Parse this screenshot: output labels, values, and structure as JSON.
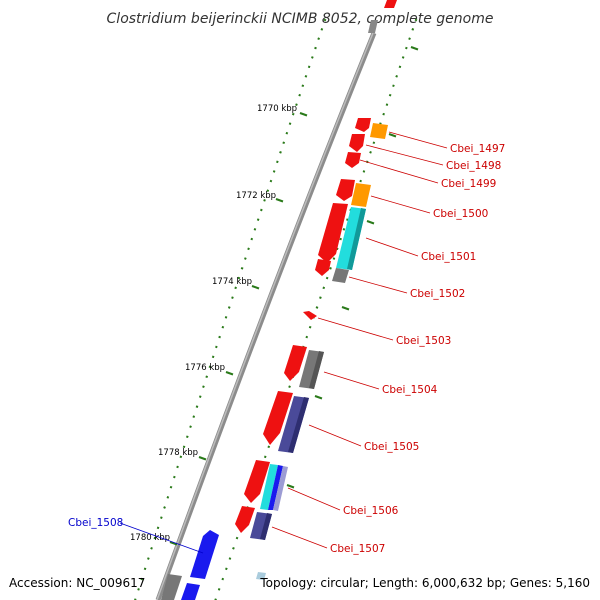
{
  "title": "Clostridium beijerinckii NCIMB 8052, complete genome",
  "footer": {
    "accession": "Accession: NC_009617",
    "topology": "Topology: circular; Length: 6,000,632 bp; Genes: 5,160"
  },
  "ticks": [
    "1770 kbp",
    "1772 kbp",
    "1774 kbp",
    "1776 kbp",
    "1778 kbp",
    "1780 kbp"
  ],
  "genes": {
    "Cbei_1497": "Cbei_1497",
    "Cbei_1498": "Cbei_1498",
    "Cbei_1499": "Cbei_1499",
    "Cbei_1500": "Cbei_1500",
    "Cbei_1501": "Cbei_1501",
    "Cbei_1502": "Cbei_1502",
    "Cbei_1503": "Cbei_1503",
    "Cbei_1504": "Cbei_1504",
    "Cbei_1505": "Cbei_1505",
    "Cbei_1506": "Cbei_1506",
    "Cbei_1507": "Cbei_1507",
    "Cbei_1508": "Cbei_1508"
  },
  "colors": {
    "backbone": "#8c8c8c",
    "tick": "#2a7a1a",
    "cds_red": "#ee1111",
    "orange": "#ff9900",
    "cyan": "#22dddd",
    "gray": "#777777",
    "slate": "#4a4a99",
    "blue": "#1a1aee",
    "label_red": "#cc0000",
    "label_blue": "#0000cc"
  }
}
